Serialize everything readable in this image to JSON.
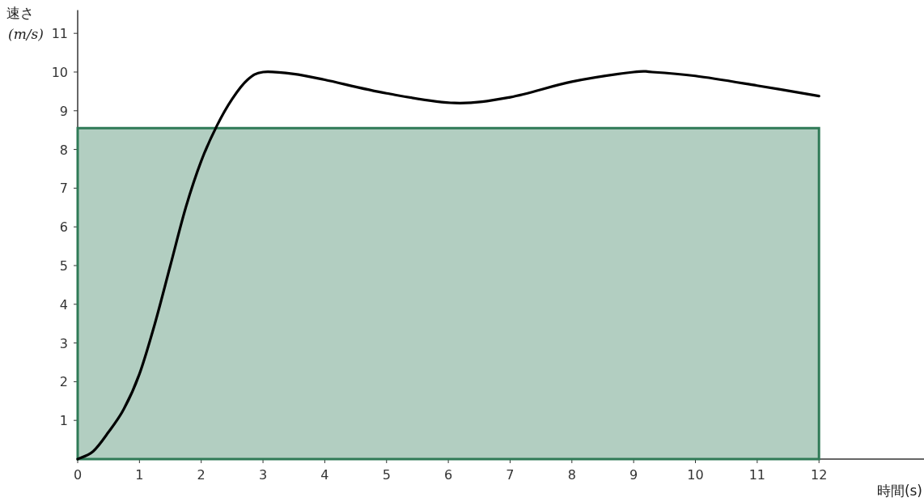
{
  "chart_data": {
    "type": "line",
    "xlabel": "時間(s)",
    "ylabel": "速さ(m/s)",
    "xlim": [
      0,
      13.7
    ],
    "ylim": [
      0,
      11.6
    ],
    "xticks": [
      0,
      1,
      2,
      3,
      4,
      5,
      6,
      7,
      8,
      9,
      10,
      11,
      12
    ],
    "yticks": [
      1,
      2,
      3,
      4,
      5,
      6,
      7,
      8,
      9,
      10,
      11
    ],
    "grid": false,
    "marker": "none",
    "line_style": "solid",
    "series": [
      {
        "type": "area",
        "color": "#2f7a57",
        "x": [
          0,
          12
        ],
        "values": [
          8.55,
          8.55
        ]
      },
      {
        "color": "#000000",
        "x": [
          0,
          0.25,
          0.5,
          0.75,
          1,
          1.25,
          1.5,
          1.75,
          2,
          2.25,
          2.5,
          2.75,
          3,
          3.5,
          4,
          5,
          6.1,
          7,
          8,
          9,
          9.3,
          10,
          11,
          12
        ],
        "values": [
          0,
          0.2,
          0.7,
          1.3,
          2.2,
          3.5,
          5.0,
          6.5,
          7.7,
          8.6,
          9.3,
          9.8,
          10.0,
          9.95,
          9.8,
          9.45,
          9.2,
          9.35,
          9.75,
          10.0,
          10.0,
          9.9,
          9.65,
          9.38
        ]
      }
    ]
  }
}
